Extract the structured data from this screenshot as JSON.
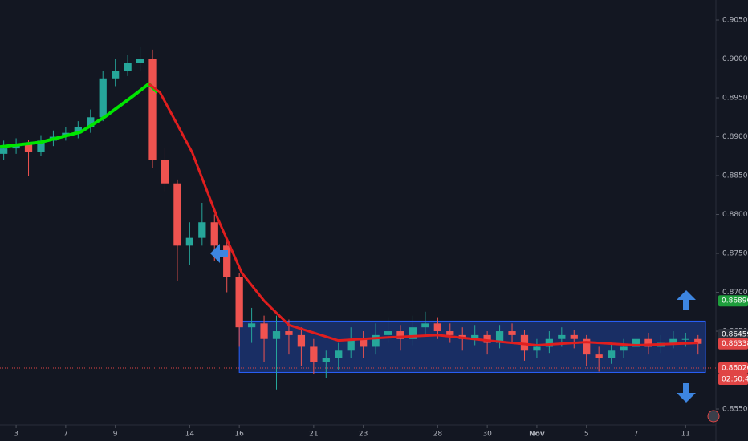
{
  "chart_data": {
    "type": "candlestick",
    "x": [
      -0.5,
      0,
      0.5,
      1,
      1.5,
      2,
      2.5,
      3,
      3.5,
      4,
      4.5,
      5,
      5.5,
      6,
      6.5,
      7,
      7.5,
      8,
      8.5,
      9,
      9.5,
      10,
      10.5,
      11,
      11.5,
      12,
      12.5,
      13,
      13.5,
      14,
      14.5,
      15,
      15.5,
      16,
      16.5,
      17,
      17.5,
      18,
      18.5,
      19,
      19.5,
      20,
      20.5,
      21,
      21.5,
      22,
      22.5,
      23,
      23.5,
      24,
      24.5,
      25,
      25.5,
      26,
      26.5,
      27,
      27.5
    ],
    "open": [
      0.8878,
      0.8885,
      0.889,
      0.888,
      0.8895,
      0.89,
      0.8905,
      0.8912,
      0.8925,
      0.8975,
      0.8985,
      0.8995,
      0.9,
      0.887,
      0.884,
      0.876,
      0.877,
      0.879,
      0.876,
      0.872,
      0.8655,
      0.866,
      0.864,
      0.865,
      0.8645,
      0.863,
      0.861,
      0.8615,
      0.8625,
      0.864,
      0.863,
      0.8645,
      0.865,
      0.864,
      0.8655,
      0.866,
      0.865,
      0.8645,
      0.864,
      0.8645,
      0.8635,
      0.865,
      0.8645,
      0.8625,
      0.863,
      0.864,
      0.8645,
      0.864,
      0.862,
      0.8615,
      0.8625,
      0.863,
      0.864,
      0.863,
      0.8635,
      0.864,
      0.864
    ],
    "high": [
      0.8895,
      0.8898,
      0.8896,
      0.8902,
      0.8908,
      0.8912,
      0.892,
      0.8935,
      0.8985,
      0.9,
      0.9005,
      0.9015,
      0.9012,
      0.8885,
      0.8845,
      0.879,
      0.8815,
      0.88,
      0.877,
      0.8725,
      0.868,
      0.867,
      0.867,
      0.8665,
      0.8655,
      0.864,
      0.8625,
      0.8635,
      0.8655,
      0.865,
      0.866,
      0.8668,
      0.8658,
      0.867,
      0.8675,
      0.8668,
      0.866,
      0.8655,
      0.8658,
      0.865,
      0.8658,
      0.866,
      0.8652,
      0.864,
      0.865,
      0.8655,
      0.8652,
      0.8645,
      0.863,
      0.8635,
      0.864,
      0.8662,
      0.8648,
      0.8645,
      0.865,
      0.8648,
      0.8645
    ],
    "low": [
      0.887,
      0.8878,
      0.885,
      0.8875,
      0.8888,
      0.8895,
      0.8898,
      0.8905,
      0.892,
      0.8965,
      0.8978,
      0.8985,
      0.886,
      0.883,
      0.8715,
      0.8735,
      0.876,
      0.874,
      0.87,
      0.863,
      0.8635,
      0.861,
      0.8575,
      0.862,
      0.8605,
      0.8595,
      0.859,
      0.86,
      0.8615,
      0.8615,
      0.862,
      0.8635,
      0.8625,
      0.8632,
      0.8645,
      0.864,
      0.8635,
      0.8625,
      0.8632,
      0.862,
      0.8628,
      0.8635,
      0.8612,
      0.8615,
      0.8622,
      0.863,
      0.8628,
      0.8605,
      0.8598,
      0.8608,
      0.8615,
      0.8622,
      0.862,
      0.8622,
      0.8628,
      0.863,
      0.862
    ],
    "close": [
      0.8885,
      0.889,
      0.888,
      0.8895,
      0.89,
      0.8905,
      0.8912,
      0.8925,
      0.8975,
      0.8985,
      0.8995,
      0.9,
      0.887,
      0.884,
      0.876,
      0.877,
      0.879,
      0.876,
      0.872,
      0.8655,
      0.866,
      0.864,
      0.865,
      0.8645,
      0.863,
      0.861,
      0.8615,
      0.8625,
      0.864,
      0.863,
      0.8645,
      0.865,
      0.864,
      0.8655,
      0.866,
      0.865,
      0.8645,
      0.864,
      0.8645,
      0.8635,
      0.865,
      0.8645,
      0.8625,
      0.863,
      0.864,
      0.8645,
      0.864,
      0.862,
      0.8615,
      0.8625,
      0.863,
      0.864,
      0.863,
      0.8635,
      0.864,
      0.864,
      0.86338
    ],
    "up_color": "#26a69a",
    "down_color": "#ef5350",
    "lines": [
      {
        "color": "#00e600",
        "width": 4,
        "x": [
          -0.65,
          1,
          2.6,
          3.6,
          4.7,
          5.35,
          5.7
        ],
        "values": [
          0.8887,
          0.8893,
          0.8906,
          0.8926,
          0.8952,
          0.8968,
          0.8957
        ]
      },
      {
        "color": "#e01e1e",
        "width": 3,
        "x": [
          5.35,
          5.8,
          7.1,
          8.1,
          9.1,
          10,
          11,
          13,
          15,
          17,
          19,
          21,
          23,
          25,
          27.5
        ],
        "values": [
          0.8968,
          0.8957,
          0.888,
          0.8797,
          0.8725,
          0.8689,
          0.8658,
          0.8638,
          0.8642,
          0.8645,
          0.8638,
          0.8632,
          0.8636,
          0.8632,
          0.8635
        ]
      }
    ],
    "range_box": {
      "x": [
        9,
        27.8
      ],
      "y": [
        0.8597,
        0.8663
      ],
      "color": "#2962ff"
    },
    "xlim": [
      -0.65,
      28.22
    ],
    "ylim": [
      0.85088,
      0.90758
    ],
    "xticks": [
      {
        "value": 0,
        "label": "3"
      },
      {
        "value": 2,
        "label": "7"
      },
      {
        "value": 4,
        "label": "9"
      },
      {
        "value": 7,
        "label": "14"
      },
      {
        "value": 9,
        "label": "16"
      },
      {
        "value": 12,
        "label": "21"
      },
      {
        "value": 14,
        "label": "23"
      },
      {
        "value": 17,
        "label": "28"
      },
      {
        "value": 19,
        "label": "30"
      },
      {
        "value": 21,
        "label": "Nov"
      },
      {
        "value": 23,
        "label": "5"
      },
      {
        "value": 25,
        "label": "7"
      },
      {
        "value": 27,
        "label": "11"
      }
    ],
    "yticks": [
      {
        "value": 0.855,
        "label": "0.85500"
      },
      {
        "value": 0.86,
        "label": "0.86000"
      },
      {
        "value": 0.865,
        "label": "0.86500"
      },
      {
        "value": 0.87,
        "label": "0.87000"
      },
      {
        "value": 0.875,
        "label": "0.87500"
      },
      {
        "value": 0.88,
        "label": "0.88000"
      },
      {
        "value": 0.885,
        "label": "0.88500"
      },
      {
        "value": 0.89,
        "label": "0.89000"
      },
      {
        "value": 0.895,
        "label": "0.89500"
      },
      {
        "value": 0.9,
        "label": "0.90000"
      },
      {
        "value": 0.905,
        "label": "0.90500"
      }
    ],
    "price_labels": [
      {
        "value": 0.8689,
        "label": "0.86890",
        "color": "#1e9e3c"
      },
      {
        "value": 0.86459,
        "label": "0.86459",
        "color": "#2a2e39"
      },
      {
        "value": 0.86338,
        "label": "0.86338",
        "color": "#e04545"
      },
      {
        "value": 0.86026,
        "label": "0.86026",
        "color": "#e04545"
      }
    ],
    "countdown": "02:50:45"
  }
}
